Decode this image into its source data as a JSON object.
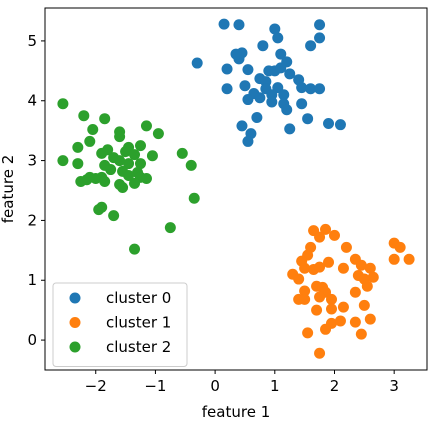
{
  "chart_data": {
    "type": "scatter",
    "xlabel": "feature 1",
    "ylabel": "feature 2",
    "xlim": [
      -2.85,
      3.55
    ],
    "ylim": [
      -0.5,
      5.55
    ],
    "xticks": [
      -2,
      -1,
      0,
      1,
      2,
      3
    ],
    "xtick_labels": [
      "−2",
      "−1",
      "0",
      "1",
      "2",
      "3"
    ],
    "yticks": [
      0,
      1,
      2,
      3,
      4,
      5
    ],
    "ytick_labels": [
      "0",
      "1",
      "2",
      "3",
      "4",
      "5"
    ],
    "grid": false,
    "legend_position": "lower-left",
    "series": [
      {
        "name": "cluster 0",
        "color": "#1f77b4",
        "points": [
          [
            0.15,
            5.28
          ],
          [
            0.4,
            5.27
          ],
          [
            1.0,
            5.2
          ],
          [
            1.05,
            5.05
          ],
          [
            1.75,
            5.27
          ],
          [
            1.75,
            5.05
          ],
          [
            1.6,
            4.92
          ],
          [
            -0.3,
            4.63
          ],
          [
            0.2,
            4.53
          ],
          [
            0.4,
            4.7
          ],
          [
            0.45,
            4.8
          ],
          [
            0.35,
            4.78
          ],
          [
            0.8,
            4.92
          ],
          [
            1.1,
            4.78
          ],
          [
            1.2,
            4.65
          ],
          [
            0.55,
            4.52
          ],
          [
            0.9,
            4.5
          ],
          [
            1.0,
            4.5
          ],
          [
            1.1,
            4.55
          ],
          [
            1.25,
            4.45
          ],
          [
            0.75,
            4.37
          ],
          [
            0.85,
            4.32
          ],
          [
            1.4,
            4.35
          ],
          [
            0.5,
            4.25
          ],
          [
            0.2,
            4.2
          ],
          [
            0.85,
            4.2
          ],
          [
            1.05,
            4.22
          ],
          [
            1.15,
            4.1
          ],
          [
            1.45,
            4.22
          ],
          [
            1.6,
            4.2
          ],
          [
            1.75,
            4.2
          ],
          [
            0.65,
            4.12
          ],
          [
            0.75,
            4.05
          ],
          [
            0.95,
            4.1
          ],
          [
            0.55,
            4.02
          ],
          [
            0.95,
            3.98
          ],
          [
            1.15,
            3.95
          ],
          [
            1.2,
            3.85
          ],
          [
            1.45,
            3.95
          ],
          [
            0.7,
            3.72
          ],
          [
            1.55,
            3.7
          ],
          [
            1.9,
            3.62
          ],
          [
            2.1,
            3.6
          ],
          [
            0.45,
            3.58
          ],
          [
            0.6,
            3.45
          ],
          [
            1.25,
            3.53
          ],
          [
            0.55,
            3.32
          ]
        ]
      },
      {
        "name": "cluster 1",
        "color": "#ff7f0e",
        "points": [
          [
            3.0,
            1.62
          ],
          [
            3.1,
            1.55
          ],
          [
            1.65,
            1.83
          ],
          [
            1.85,
            1.85
          ],
          [
            1.75,
            1.72
          ],
          [
            2.0,
            1.75
          ],
          [
            2.2,
            1.55
          ],
          [
            3.25,
            1.35
          ],
          [
            3.0,
            1.35
          ],
          [
            1.6,
            1.55
          ],
          [
            1.55,
            1.42
          ],
          [
            1.45,
            1.32
          ],
          [
            1.9,
            1.3
          ],
          [
            2.35,
            1.35
          ],
          [
            2.45,
            1.25
          ],
          [
            1.5,
            1.2
          ],
          [
            1.65,
            1.18
          ],
          [
            1.75,
            1.22
          ],
          [
            2.15,
            1.2
          ],
          [
            2.6,
            1.2
          ],
          [
            1.3,
            1.1
          ],
          [
            1.4,
            1.02
          ],
          [
            2.4,
            1.08
          ],
          [
            2.5,
            1.02
          ],
          [
            2.65,
            1.05
          ],
          [
            1.7,
            0.9
          ],
          [
            1.8,
            0.88
          ],
          [
            1.5,
            0.82
          ],
          [
            1.85,
            0.8
          ],
          [
            2.35,
            0.8
          ],
          [
            2.55,
            0.9
          ],
          [
            1.75,
            0.72
          ],
          [
            1.95,
            0.68
          ],
          [
            1.4,
            0.68
          ],
          [
            1.5,
            0.68
          ],
          [
            1.7,
            0.5
          ],
          [
            1.95,
            0.52
          ],
          [
            2.15,
            0.55
          ],
          [
            2.5,
            0.58
          ],
          [
            1.95,
            0.28
          ],
          [
            2.1,
            0.32
          ],
          [
            2.35,
            0.3
          ],
          [
            2.6,
            0.35
          ],
          [
            1.55,
            0.12
          ],
          [
            1.85,
            0.18
          ],
          [
            2.45,
            0.1
          ],
          [
            1.75,
            -0.22
          ]
        ]
      },
      {
        "name": "cluster 2",
        "color": "#2ca02c",
        "points": [
          [
            -2.55,
            3.95
          ],
          [
            -2.2,
            3.75
          ],
          [
            -1.85,
            3.7
          ],
          [
            -1.15,
            3.58
          ],
          [
            -2.05,
            3.52
          ],
          [
            -1.6,
            3.48
          ],
          [
            -0.95,
            3.45
          ],
          [
            -1.6,
            3.4
          ],
          [
            -2.1,
            3.32
          ],
          [
            -2.3,
            3.22
          ],
          [
            -1.25,
            3.25
          ],
          [
            -1.45,
            3.22
          ],
          [
            -1.5,
            3.15
          ],
          [
            -1.8,
            3.18
          ],
          [
            -1.9,
            3.12
          ],
          [
            -1.35,
            3.1
          ],
          [
            -1.05,
            3.08
          ],
          [
            -0.55,
            3.12
          ],
          [
            -1.7,
            3.05
          ],
          [
            -1.6,
            3.0
          ],
          [
            -1.45,
            2.95
          ],
          [
            -1.25,
            2.95
          ],
          [
            -2.55,
            3.0
          ],
          [
            -2.3,
            2.95
          ],
          [
            -1.85,
            2.92
          ],
          [
            -0.4,
            2.92
          ],
          [
            -1.75,
            2.85
          ],
          [
            -1.55,
            2.82
          ],
          [
            -1.3,
            2.8
          ],
          [
            -1.45,
            2.75
          ],
          [
            -1.25,
            2.72
          ],
          [
            -1.15,
            2.7
          ],
          [
            -1.9,
            2.72
          ],
          [
            -2.0,
            2.7
          ],
          [
            -2.15,
            2.68
          ],
          [
            -2.25,
            2.65
          ],
          [
            -2.1,
            2.72
          ],
          [
            -1.85,
            2.65
          ],
          [
            -1.6,
            2.6
          ],
          [
            -1.55,
            2.55
          ],
          [
            -1.35,
            2.62
          ],
          [
            -0.35,
            2.37
          ],
          [
            -1.9,
            2.22
          ],
          [
            -1.95,
            2.18
          ],
          [
            -1.7,
            2.08
          ],
          [
            -0.75,
            1.88
          ],
          [
            -1.35,
            1.52
          ]
        ]
      }
    ]
  }
}
